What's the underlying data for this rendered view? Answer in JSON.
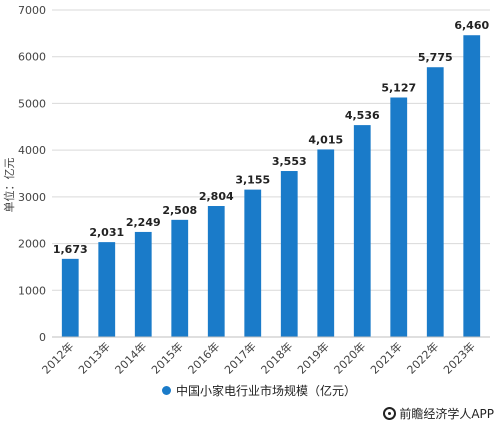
{
  "chart_data": {
    "type": "bar",
    "categories": [
      "2012年",
      "2013年",
      "2014年",
      "2015年",
      "2016年",
      "2017年",
      "2018年",
      "2019年",
      "2020年",
      "2021年",
      "2022年",
      "2023年"
    ],
    "series": [
      {
        "name": "中国小家电行业市场规模（亿元）",
        "values": [
          1673,
          2031,
          2249,
          2508,
          2804,
          3155,
          3553,
          4015,
          4536,
          5127,
          5775,
          6460
        ],
        "labels": [
          "1,673",
          "2,031",
          "2,249",
          "2,508",
          "2,804",
          "3,155",
          "3,553",
          "4,015",
          "4,536",
          "5,127",
          "5,775",
          "6,460"
        ]
      }
    ],
    "ylabel": "单位：亿元",
    "ylim": [
      0,
      7000
    ],
    "yticks": [
      0,
      1000,
      2000,
      3000,
      4000,
      5000,
      6000,
      7000
    ],
    "grid": "y",
    "legend_position": "bottom"
  },
  "colors": {
    "bar": "#1a7bc9",
    "grid": "#d9d9d9",
    "axis": "#bfbfbf"
  },
  "legend": {
    "label": "中国小家电行业市场规模（亿元）"
  },
  "source": {
    "credit": "前瞻经济学人APP"
  }
}
